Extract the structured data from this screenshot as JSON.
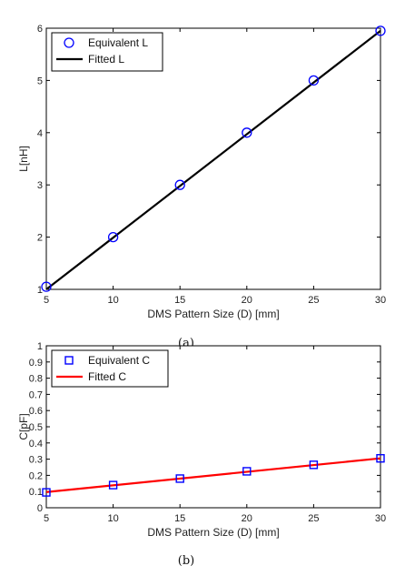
{
  "chart_data": [
    {
      "type": "line",
      "caption": "(a)",
      "xlabel": "DMS Pattern Size (D) [mm]",
      "ylabel": "L[nH]",
      "xlim": [
        5,
        30
      ],
      "ylim": [
        1,
        6
      ],
      "xticks": [
        5,
        10,
        15,
        20,
        25,
        30
      ],
      "yticks": [
        1,
        2,
        3,
        4,
        5,
        6
      ],
      "grid": false,
      "legend": "top-left",
      "series": [
        {
          "name": "Equivalent L",
          "style": "marker",
          "marker": "circle",
          "color": "#0000ff",
          "x": [
            5,
            10,
            15,
            20,
            25,
            30
          ],
          "y": [
            1.05,
            2.0,
            3.0,
            4.0,
            5.0,
            5.95
          ]
        },
        {
          "name": "Fitted L",
          "style": "line",
          "color": "#000000",
          "x": [
            5,
            30
          ],
          "y": [
            1.0,
            5.95
          ]
        }
      ]
    },
    {
      "type": "line",
      "caption": "(b)",
      "xlabel": "DMS Pattern Size (D) [mm]",
      "ylabel": "C[pF]",
      "xlim": [
        5,
        30
      ],
      "ylim": [
        0,
        1
      ],
      "xticks": [
        5,
        10,
        15,
        20,
        25,
        30
      ],
      "yticks": [
        0,
        0.1,
        0.2,
        0.3,
        0.4,
        0.5,
        0.6,
        0.7,
        0.8,
        0.9,
        1
      ],
      "grid": false,
      "legend": "top-left",
      "series": [
        {
          "name": "Equivalent C",
          "style": "marker",
          "marker": "square",
          "color": "#0000ff",
          "x": [
            5,
            10,
            15,
            20,
            25,
            30
          ],
          "y": [
            0.095,
            0.14,
            0.18,
            0.225,
            0.265,
            0.305
          ]
        },
        {
          "name": "Fitted C",
          "style": "line",
          "color": "#ff0000",
          "x": [
            5,
            30
          ],
          "y": [
            0.097,
            0.305
          ]
        }
      ]
    }
  ]
}
